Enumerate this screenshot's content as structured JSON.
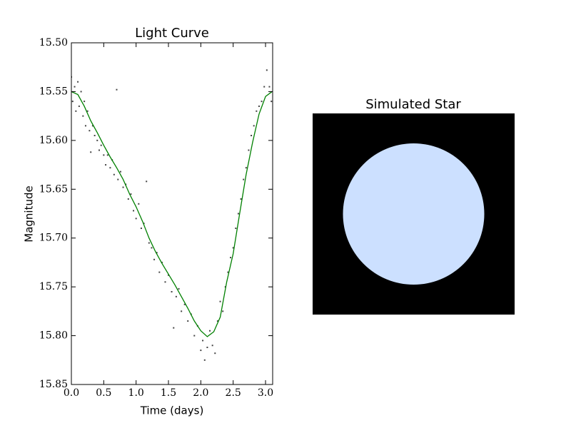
{
  "chart_data": [
    {
      "type": "scatter",
      "title": "Light Curve",
      "x_label": "Time (days)",
      "y_label": "Magnitude",
      "xlim": [
        0,
        3.11
      ],
      "ylim": [
        15.5,
        15.85
      ],
      "y_inverted": true,
      "xticks": [
        {
          "value": 0,
          "label": "0.0"
        },
        {
          "value": 0.5,
          "label": "0.5"
        },
        {
          "value": 1,
          "label": "1.0"
        },
        {
          "value": 1.5,
          "label": "1.5"
        },
        {
          "value": 2,
          "label": "2.0"
        },
        {
          "value": 2.5,
          "label": "2.5"
        },
        {
          "value": 3,
          "label": "3.0"
        }
      ],
      "yticks": [
        {
          "value": 15.5,
          "label": "15.50"
        },
        {
          "value": 15.55,
          "label": "15.55"
        },
        {
          "value": 15.6,
          "label": "15.60"
        },
        {
          "value": 15.65,
          "label": "15.65"
        },
        {
          "value": 15.7,
          "label": "15.70"
        },
        {
          "value": 15.75,
          "label": "15.75"
        },
        {
          "value": 15.8,
          "label": "15.80"
        },
        {
          "value": 15.85,
          "label": "15.85"
        }
      ],
      "series": [
        {
          "type": "scatter",
          "color": "#444444",
          "x": [
            0.0,
            0.02,
            0.05,
            0.07,
            0.1,
            0.12,
            0.15,
            0.18,
            0.2,
            0.22,
            0.25,
            0.28,
            0.3,
            0.33,
            0.36,
            0.4,
            0.43,
            0.46,
            0.5,
            0.53,
            0.56,
            0.6,
            0.63,
            0.66,
            0.7,
            0.72,
            0.76,
            0.8,
            0.84,
            0.88,
            0.92,
            0.96,
            1.0,
            1.04,
            1.08,
            1.12,
            1.16,
            1.2,
            1.24,
            1.28,
            1.32,
            1.36,
            1.4,
            1.45,
            1.5,
            1.55,
            1.58,
            1.62,
            1.66,
            1.7,
            1.75,
            1.8,
            1.85,
            1.9,
            1.95,
            2.0,
            2.03,
            2.06,
            2.1,
            2.14,
            2.18,
            2.22,
            2.26,
            2.3,
            2.34,
            2.38,
            2.42,
            2.46,
            2.5,
            2.54,
            2.58,
            2.62,
            2.66,
            2.7,
            2.74,
            2.78,
            2.82,
            2.86,
            2.9,
            2.94,
            2.98,
            3.02,
            3.06,
            3.09
          ],
          "values": [
            15.535,
            15.56,
            15.545,
            15.57,
            15.54,
            15.565,
            15.55,
            15.575,
            15.56,
            15.585,
            15.57,
            15.59,
            15.612,
            15.585,
            15.595,
            15.6,
            15.61,
            15.605,
            15.615,
            15.625,
            15.615,
            15.628,
            15.62,
            15.635,
            15.548,
            15.64,
            15.632,
            15.648,
            15.645,
            15.66,
            15.655,
            15.672,
            15.68,
            15.665,
            15.69,
            15.685,
            15.642,
            15.705,
            15.71,
            15.722,
            15.715,
            15.735,
            15.725,
            15.745,
            15.738,
            15.755,
            15.792,
            15.76,
            15.752,
            15.775,
            15.768,
            15.785,
            15.778,
            15.8,
            15.79,
            15.815,
            15.805,
            15.825,
            15.812,
            15.795,
            15.81,
            15.818,
            15.785,
            15.765,
            15.775,
            15.75,
            15.735,
            15.72,
            15.71,
            15.69,
            15.675,
            15.66,
            15.64,
            15.628,
            15.61,
            15.595,
            15.585,
            15.57,
            15.565,
            15.56,
            15.545,
            15.528,
            15.545,
            15.56
          ]
        },
        {
          "type": "line",
          "color": "#008000",
          "x": [
            0,
            0.1,
            0.2,
            0.3,
            0.4,
            0.5,
            0.6,
            0.7,
            0.8,
            0.9,
            1.0,
            1.1,
            1.2,
            1.3,
            1.4,
            1.5,
            1.6,
            1.7,
            1.8,
            1.9,
            2.0,
            2.1,
            2.2,
            2.3,
            2.4,
            2.5,
            2.6,
            2.7,
            2.8,
            2.9,
            3.0,
            3.1
          ],
          "values": [
            15.55,
            15.553,
            15.565,
            15.58,
            15.592,
            15.605,
            15.617,
            15.628,
            15.64,
            15.655,
            15.668,
            15.683,
            15.7,
            15.714,
            15.726,
            15.737,
            15.748,
            15.76,
            15.772,
            15.785,
            15.795,
            15.801,
            15.796,
            15.781,
            15.745,
            15.716,
            15.675,
            15.635,
            15.602,
            15.573,
            15.555,
            15.55
          ]
        }
      ]
    },
    {
      "type": "image",
      "title": "Simulated Star",
      "background": "#000000",
      "color": "#cce0ff"
    }
  ]
}
